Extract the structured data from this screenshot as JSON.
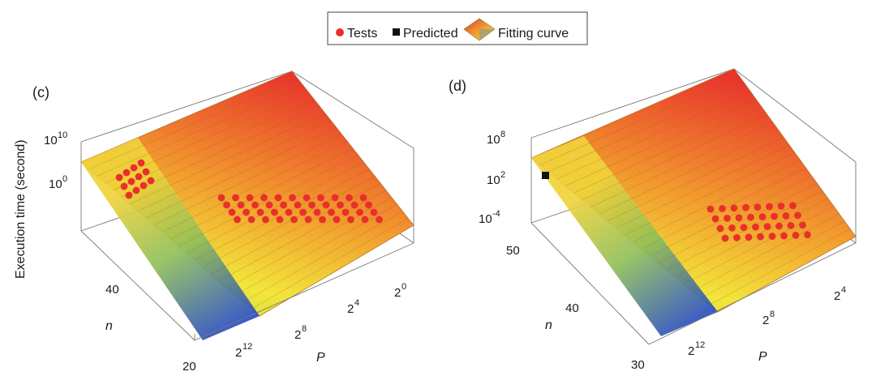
{
  "legend": {
    "items": [
      {
        "label": "Tests",
        "marker": "circle",
        "color": "#e8302a"
      },
      {
        "label": "Predicted",
        "marker": "square",
        "color": "#111111"
      },
      {
        "label": "Fitting curve",
        "marker": "surface",
        "color": "#f0a030"
      }
    ]
  },
  "shared": {
    "zlabel": "Execution time (second)",
    "xlabel": "n",
    "ylabel": "P"
  },
  "colors": {
    "surface_high": "#e8332b",
    "surface_mid": "#f29a2e",
    "surface_low": "#f2e63a",
    "surface_front": "#2f57c8",
    "tests": "#e8302a",
    "predicted": "#111111"
  },
  "chart_data": [
    {
      "type": "surface3d",
      "panel": "(c)",
      "title": "",
      "zlabel": "Execution time (second)",
      "xlabel": "n",
      "ylabel": "P",
      "z_ticks": [
        {
          "base": "10",
          "exp": "10"
        },
        {
          "base": "10",
          "exp": "0"
        }
      ],
      "n_ticks": [
        "40",
        "20"
      ],
      "p_ticks": [
        {
          "base": "2",
          "exp": "12"
        },
        {
          "base": "2",
          "exp": "8"
        },
        {
          "base": "2",
          "exp": "4"
        },
        {
          "base": "2",
          "exp": "0"
        }
      ],
      "series": [
        {
          "name": "Tests",
          "marker": "circle",
          "clusters": [
            {
              "rows": 4,
              "cols": 3
            },
            {
              "rows": 11,
              "cols": 4
            }
          ]
        }
      ]
    },
    {
      "type": "surface3d",
      "panel": "(d)",
      "title": "",
      "zlabel": "",
      "xlabel": "n",
      "ylabel": "P",
      "z_ticks": [
        {
          "base": "10",
          "exp": "8"
        },
        {
          "base": "10",
          "exp": "2"
        },
        {
          "base": "10",
          "exp": "-4"
        }
      ],
      "n_ticks": [
        "50",
        "40",
        "30"
      ],
      "p_ticks": [
        {
          "base": "2",
          "exp": "12"
        },
        {
          "base": "2",
          "exp": "8"
        },
        {
          "base": "2",
          "exp": "4"
        }
      ],
      "series": [
        {
          "name": "Tests",
          "marker": "circle",
          "clusters": [
            {
              "rows": 8,
              "cols": 4
            }
          ]
        },
        {
          "name": "Predicted",
          "marker": "square",
          "count": 1
        }
      ]
    }
  ]
}
